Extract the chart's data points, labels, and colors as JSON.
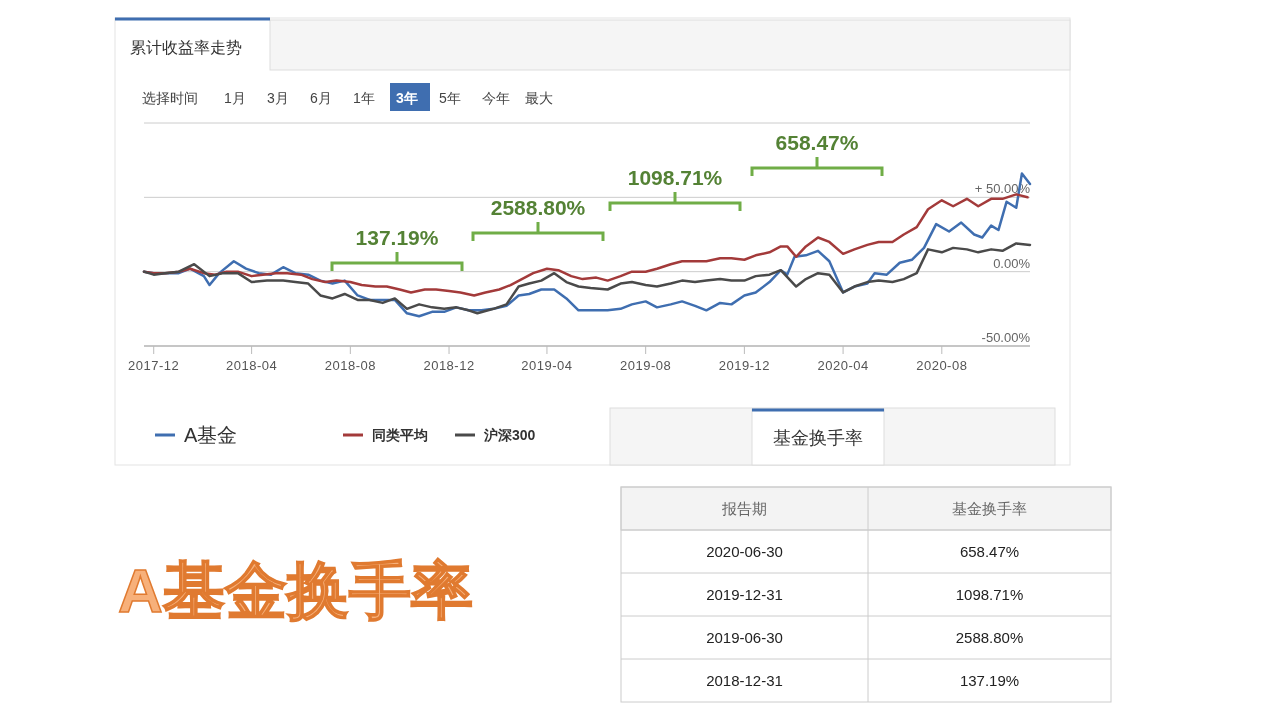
{
  "chart_data": [
    {
      "type": "line",
      "title": "累计收益率走势",
      "legend": "bottom",
      "grid": "y",
      "line_style": "solid",
      "marker": "none",
      "xlim": [
        "2017-11-19",
        "2020-11-18"
      ],
      "ylim": [
        -50,
        100
      ],
      "xticks": [
        "2017-12",
        "2018-04",
        "2018-08",
        "2018-12",
        "2019-04",
        "2019-08",
        "2019-12",
        "2020-04",
        "2020-08"
      ],
      "yticks": [
        {
          "value": -50,
          "label": "-50.00%"
        },
        {
          "value": 0,
          "label": "0.00%"
        },
        {
          "value": 50,
          "label": "+ 50.00%"
        },
        {
          "value": 100,
          "label": null
        }
      ],
      "annotations": [
        "选择时间",
        "1月",
        "3月",
        "6月",
        "1年",
        "3年",
        "5年",
        "今年",
        "最大",
        "137.19%",
        "2588.80%",
        "1098.71%",
        "658.47%"
      ],
      "series": [
        {
          "name": "A基金",
          "color": "#3f6eb0",
          "x": [
            "2017-11-19",
            "2017-12-01",
            "2017-12-15",
            "2018-01-01",
            "2018-01-15",
            "2018-02-01",
            "2018-02-08",
            "2018-02-20",
            "2018-03-10",
            "2018-03-25",
            "2018-04-10",
            "2018-04-25",
            "2018-05-10",
            "2018-05-25",
            "2018-06-10",
            "2018-06-25",
            "2018-07-10",
            "2018-07-25",
            "2018-08-10",
            "2018-08-25",
            "2018-09-10",
            "2018-09-25",
            "2018-10-10",
            "2018-10-25",
            "2018-11-10",
            "2018-11-25",
            "2018-12-10",
            "2018-12-25",
            "2019-01-10",
            "2019-01-25",
            "2019-02-10",
            "2019-02-25",
            "2019-03-10",
            "2019-03-25",
            "2019-04-10",
            "2019-04-25",
            "2019-05-10",
            "2019-05-25",
            "2019-06-15",
            "2019-07-01",
            "2019-07-15",
            "2019-08-01",
            "2019-08-15",
            "2019-09-01",
            "2019-09-15",
            "2019-10-01",
            "2019-10-15",
            "2019-11-01",
            "2019-11-15",
            "2019-12-01",
            "2019-12-15",
            "2020-01-01",
            "2020-01-15",
            "2020-01-23",
            "2020-02-01",
            "2020-02-15",
            "2020-03-01",
            "2020-03-15",
            "2020-04-01",
            "2020-04-15",
            "2020-05-01",
            "2020-05-10",
            "2020-05-25",
            "2020-06-10",
            "2020-06-25",
            "2020-07-10",
            "2020-07-25",
            "2020-08-10",
            "2020-08-25",
            "2020-09-10",
            "2020-09-20",
            "2020-10-01",
            "2020-10-10",
            "2020-10-20",
            "2020-11-01",
            "2020-11-08",
            "2020-11-18"
          ],
          "values": [
            0,
            -1,
            -1,
            -1,
            2,
            -3,
            -9,
            -1,
            7,
            2,
            -1,
            -2,
            3,
            -1,
            -2,
            -6,
            -8,
            -6,
            -16,
            -19,
            -19,
            -19,
            -28,
            -30,
            -27,
            -27,
            -24,
            -26,
            -26,
            -25,
            -23,
            -16,
            -15,
            -12,
            -12,
            -18,
            -26,
            -26,
            -26,
            -25,
            -22,
            -20,
            -24,
            -22,
            -20,
            -23,
            -26,
            -21,
            -22,
            -16,
            -14,
            -7,
            1,
            -2,
            10,
            11,
            14,
            7,
            -14,
            -10,
            -8,
            -1,
            -2,
            6,
            8,
            16,
            32,
            27,
            33,
            25,
            23,
            31,
            28,
            47,
            43,
            66,
            59
          ]
        },
        {
          "name": "同类平均",
          "color": "#a33a3a",
          "x": [
            "2017-11-19",
            "2017-12-01",
            "2017-12-15",
            "2018-01-01",
            "2018-01-15",
            "2018-02-01",
            "2018-02-15",
            "2018-03-01",
            "2018-03-15",
            "2018-04-01",
            "2018-04-15",
            "2018-05-01",
            "2018-05-15",
            "2018-06-01",
            "2018-06-15",
            "2018-07-01",
            "2018-07-15",
            "2018-08-01",
            "2018-08-15",
            "2018-09-01",
            "2018-09-15",
            "2018-10-01",
            "2018-10-15",
            "2018-11-01",
            "2018-11-15",
            "2018-12-01",
            "2018-12-15",
            "2019-01-01",
            "2019-01-15",
            "2019-02-01",
            "2019-02-15",
            "2019-03-01",
            "2019-03-15",
            "2019-04-01",
            "2019-04-15",
            "2019-05-01",
            "2019-05-15",
            "2019-06-01",
            "2019-06-15",
            "2019-07-01",
            "2019-07-15",
            "2019-08-01",
            "2019-08-15",
            "2019-09-01",
            "2019-09-15",
            "2019-10-01",
            "2019-10-15",
            "2019-11-01",
            "2019-11-15",
            "2019-12-01",
            "2019-12-15",
            "2020-01-01",
            "2020-01-15",
            "2020-01-23",
            "2020-02-03",
            "2020-02-15",
            "2020-03-01",
            "2020-03-15",
            "2020-04-01",
            "2020-04-15",
            "2020-05-01",
            "2020-05-15",
            "2020-06-01",
            "2020-06-15",
            "2020-07-01",
            "2020-07-15",
            "2020-08-01",
            "2020-08-15",
            "2020-09-01",
            "2020-09-15",
            "2020-10-01",
            "2020-10-15",
            "2020-11-01",
            "2020-11-15"
          ],
          "values": [
            0,
            -1,
            -1,
            0,
            2,
            -1,
            -2,
            0,
            0,
            -3,
            -2,
            -1,
            -1,
            -2,
            -5,
            -7,
            -6,
            -7,
            -9,
            -10,
            -10,
            -12,
            -14,
            -12,
            -12,
            -13,
            -14,
            -16,
            -14,
            -12,
            -9,
            -5,
            -1,
            2,
            1,
            -3,
            -5,
            -4,
            -6,
            -3,
            0,
            0,
            2,
            5,
            7,
            7,
            7,
            9,
            9,
            8,
            11,
            13,
            17,
            17,
            10,
            17,
            23,
            20,
            12,
            15,
            18,
            20,
            20,
            25,
            30,
            42,
            48,
            44,
            49,
            44,
            49,
            49,
            52,
            50
          ]
        },
        {
          "name": "沪深300",
          "color": "#4a4a4a",
          "x": [
            "2017-11-19",
            "2017-12-01",
            "2017-12-15",
            "2018-01-01",
            "2018-01-20",
            "2018-02-08",
            "2018-02-25",
            "2018-03-15",
            "2018-04-01",
            "2018-04-20",
            "2018-05-10",
            "2018-05-25",
            "2018-06-10",
            "2018-06-25",
            "2018-07-10",
            "2018-07-25",
            "2018-08-10",
            "2018-08-25",
            "2018-09-10",
            "2018-09-25",
            "2018-10-10",
            "2018-10-25",
            "2018-11-10",
            "2018-11-25",
            "2018-12-10",
            "2018-12-25",
            "2019-01-05",
            "2019-01-25",
            "2019-02-10",
            "2019-02-25",
            "2019-03-10",
            "2019-03-25",
            "2019-04-10",
            "2019-04-25",
            "2019-05-10",
            "2019-05-25",
            "2019-06-15",
            "2019-07-01",
            "2019-07-15",
            "2019-08-01",
            "2019-08-15",
            "2019-09-01",
            "2019-09-15",
            "2019-10-01",
            "2019-10-15",
            "2019-11-01",
            "2019-11-15",
            "2019-12-01",
            "2019-12-15",
            "2020-01-01",
            "2020-01-15",
            "2020-02-03",
            "2020-02-15",
            "2020-03-01",
            "2020-03-15",
            "2020-04-01",
            "2020-04-15",
            "2020-05-01",
            "2020-05-15",
            "2020-06-01",
            "2020-06-15",
            "2020-07-01",
            "2020-07-15",
            "2020-08-01",
            "2020-08-15",
            "2020-09-01",
            "2020-09-15",
            "2020-10-01",
            "2020-10-15",
            "2020-11-01",
            "2020-11-18"
          ],
          "values": [
            0,
            -2,
            -1,
            0,
            5,
            -3,
            -1,
            -1,
            -7,
            -6,
            -6,
            -7,
            -8,
            -16,
            -18,
            -15,
            -19,
            -19,
            -21,
            -18,
            -25,
            -22,
            -24,
            -25,
            -24,
            -26,
            -28,
            -25,
            -22,
            -10,
            -8,
            -6,
            -1,
            -7,
            -10,
            -11,
            -12,
            -8,
            -7,
            -9,
            -10,
            -8,
            -6,
            -7,
            -6,
            -5,
            -6,
            -6,
            -3,
            -2,
            1,
            -10,
            -5,
            -1,
            -2,
            -14,
            -10,
            -7,
            -6,
            -7,
            -5,
            -1,
            15,
            13,
            16,
            15,
            13,
            15,
            14,
            19,
            18
          ]
        }
      ]
    },
    {
      "type": "other",
      "title": "A基金换手率",
      "subtitle": "基金换手率",
      "annotations": [
        "报告期",
        "基金换手率",
        "2020-06-30",
        "658.47%",
        "2019-12-31",
        "1098.71%",
        "2019-06-30",
        "2588.80%",
        "2018-12-31",
        "137.19%"
      ]
    }
  ]
}
